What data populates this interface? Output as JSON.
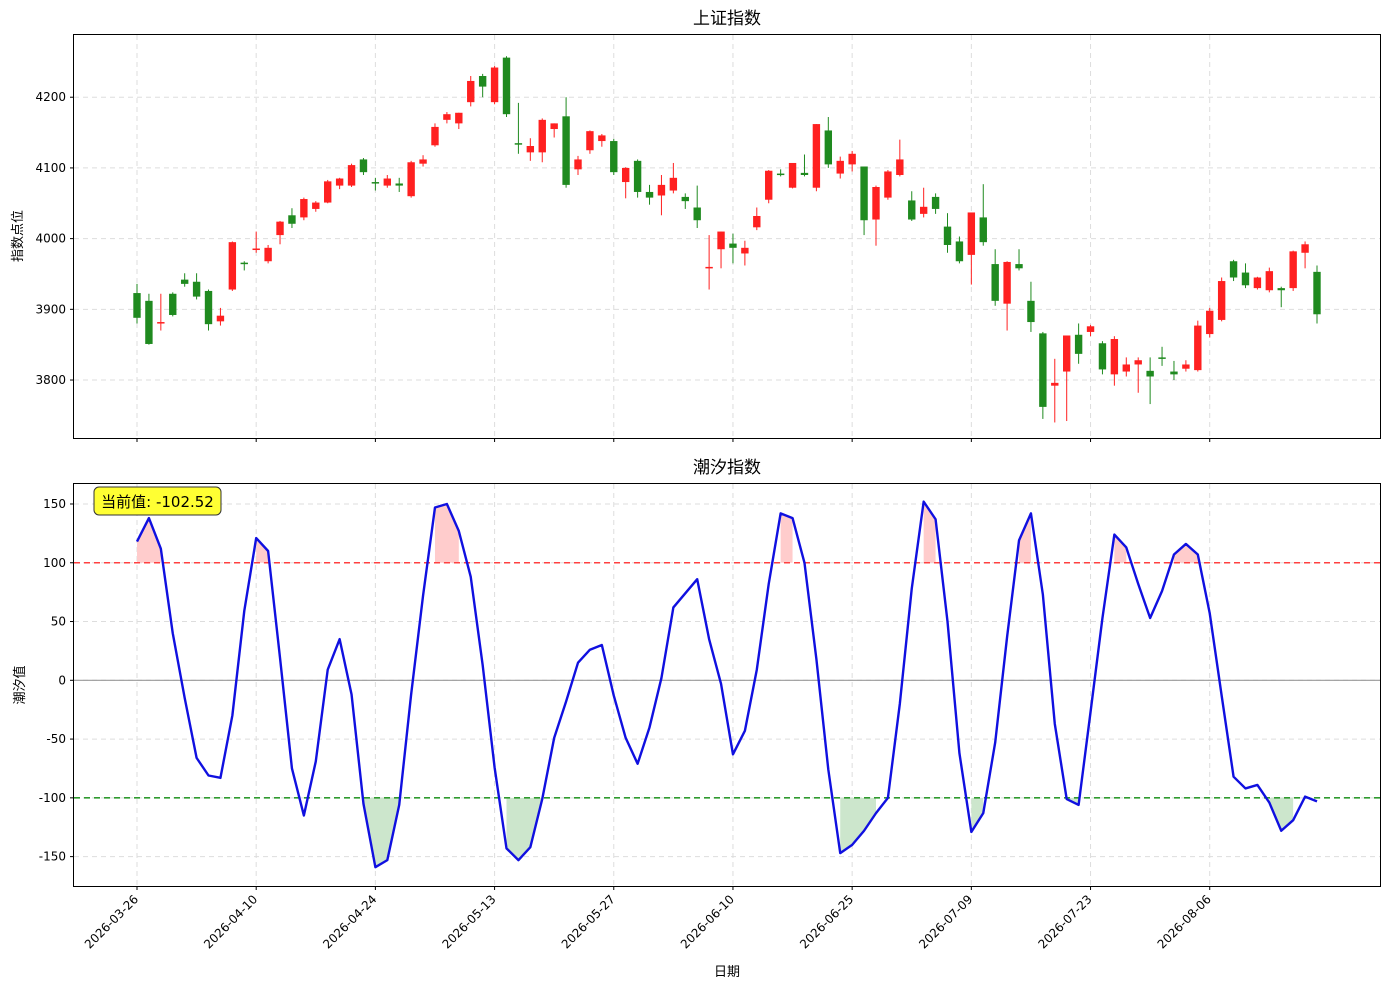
{
  "figure": {
    "xlabel": "日期",
    "x_ticks": [
      "2026-03-26",
      "2026-04-10",
      "2026-04-24",
      "2026-05-13",
      "2026-05-27",
      "2026-06-10",
      "2026-06-25",
      "2026-07-09",
      "2026-07-23",
      "2026-08-06"
    ]
  },
  "chart_data": [
    {
      "type": "candlestick",
      "title": "上证指数",
      "ylabel": "指数点位",
      "ylim": [
        3718,
        4288
      ],
      "y_ticks": [
        3800,
        3900,
        4000,
        4100,
        4200
      ],
      "grid": true,
      "colors": {
        "up": "#ff2020",
        "down": "#1f8a1f"
      },
      "x_tick_index": [
        0,
        10,
        20,
        30,
        40,
        50,
        60,
        70,
        80,
        90
      ],
      "ohlc": [
        [
          3923,
          3936,
          3888,
          3880
        ],
        [
          3912,
          3922,
          3851,
          3850
        ],
        [
          3882,
          3922,
          3882,
          3870
        ],
        [
          3922,
          3924,
          3892,
          3890
        ],
        [
          3942,
          3951,
          3936,
          3932
        ],
        [
          3939,
          3951,
          3918,
          3914
        ],
        [
          3926,
          3928,
          3879,
          3870
        ],
        [
          3883,
          3902,
          3891,
          3877
        ],
        [
          3928,
          3996,
          3995,
          3926
        ],
        [
          3966,
          3968,
          3965,
          3955
        ],
        [
          3985,
          4010,
          3986,
          3980
        ],
        [
          3968,
          3991,
          3987,
          3965
        ],
        [
          4005,
          4025,
          4024,
          3992
        ],
        [
          4033,
          4043,
          4021,
          4015
        ],
        [
          4030,
          4058,
          4056,
          4026
        ],
        [
          4042,
          4053,
          4051,
          4038
        ],
        [
          4051,
          4083,
          4081,
          4050
        ],
        [
          4075,
          4086,
          4085,
          4070
        ],
        [
          4075,
          4106,
          4104,
          4073
        ],
        [
          4112,
          4114,
          4094,
          4090
        ],
        [
          4080,
          4086,
          4078,
          4068
        ],
        [
          4075,
          4090,
          4085,
          4072
        ],
        [
          4078,
          4086,
          4075,
          4066
        ],
        [
          4060,
          4110,
          4108,
          4058
        ],
        [
          4106,
          4118,
          4112,
          4102
        ],
        [
          4132,
          4163,
          4158,
          4130
        ],
        [
          4168,
          4179,
          4176,
          4163
        ],
        [
          4163,
          4178,
          4178,
          4155
        ],
        [
          4193,
          4230,
          4223,
          4187
        ],
        [
          4230,
          4233,
          4215,
          4200
        ],
        [
          4193,
          4244,
          4242,
          4190
        ],
        [
          4256,
          4258,
          4176,
          4172
        ],
        [
          4135,
          4192,
          4134,
          4120
        ],
        [
          4122,
          4142,
          4131,
          4110
        ],
        [
          4122,
          4170,
          4168,
          4108
        ],
        [
          4155,
          4163,
          4163,
          4143
        ],
        [
          4173,
          4200,
          4076,
          4072
        ],
        [
          4098,
          4117,
          4112,
          4090
        ],
        [
          4125,
          4153,
          4152,
          4120
        ],
        [
          4138,
          4148,
          4146,
          4130
        ],
        [
          4138,
          4141,
          4094,
          4090
        ],
        [
          4080,
          4101,
          4100,
          4057
        ],
        [
          4110,
          4112,
          4066,
          4058
        ],
        [
          4066,
          4076,
          4058,
          4048
        ],
        [
          4061,
          4090,
          4076,
          4033
        ],
        [
          4068,
          4107,
          4086,
          4064
        ],
        [
          4059,
          4064,
          4053,
          4042
        ],
        [
          4044,
          4075,
          4026,
          4015
        ],
        [
          3958,
          4005,
          3960,
          3928
        ],
        [
          3985,
          4010,
          4010,
          3958
        ],
        [
          3993,
          4007,
          3987,
          3965
        ],
        [
          3979,
          3997,
          3987,
          3962
        ],
        [
          4016,
          4044,
          4032,
          4012
        ],
        [
          4055,
          4097,
          4096,
          4050
        ],
        [
          4092,
          4098,
          4091,
          4088
        ],
        [
          4072,
          4104,
          4107,
          4071
        ],
        [
          4093,
          4119,
          4090,
          4088
        ],
        [
          4072,
          4162,
          4162,
          4067
        ],
        [
          4153,
          4172,
          4105,
          4100
        ],
        [
          4092,
          4116,
          4110,
          4085
        ],
        [
          4105,
          4124,
          4120,
          4095
        ],
        [
          4102,
          4100,
          4026,
          4005
        ],
        [
          4027,
          4075,
          4073,
          3990
        ],
        [
          4058,
          4097,
          4095,
          4055
        ],
        [
          4090,
          4140,
          4112,
          4088
        ],
        [
          4054,
          4067,
          4027,
          4025
        ],
        [
          4035,
          4072,
          4045,
          4030
        ],
        [
          4059,
          4064,
          4042,
          4035
        ],
        [
          4017,
          4036,
          3991,
          3980
        ],
        [
          3996,
          4003,
          3968,
          3965
        ],
        [
          3977,
          4035,
          4037,
          3935
        ],
        [
          4030,
          4077,
          3995,
          3990
        ],
        [
          3964,
          3985,
          3912,
          3905
        ],
        [
          3908,
          3968,
          3967,
          3870
        ],
        [
          3964,
          3985,
          3958,
          3955
        ],
        [
          3912,
          3939,
          3882,
          3868
        ],
        [
          3866,
          3868,
          3762,
          3745
        ],
        [
          3792,
          3830,
          3796,
          3740
        ],
        [
          3812,
          3861,
          3863,
          3742
        ],
        [
          3864,
          3880,
          3837,
          3823
        ],
        [
          3868,
          3878,
          3876,
          3862
        ],
        [
          3852,
          3855,
          3815,
          3808
        ],
        [
          3808,
          3862,
          3858,
          3792
        ],
        [
          3812,
          3832,
          3822,
          3805
        ],
        [
          3822,
          3832,
          3828,
          3782
        ],
        [
          3813,
          3832,
          3805,
          3766
        ],
        [
          3832,
          3847,
          3831,
          3820
        ],
        [
          3812,
          3827,
          3808,
          3800
        ],
        [
          3816,
          3828,
          3822,
          3812
        ],
        [
          3814,
          3884,
          3877,
          3812
        ],
        [
          3865,
          3902,
          3898,
          3860
        ],
        [
          3885,
          3945,
          3940,
          3883
        ],
        [
          3968,
          3970,
          3945,
          3940
        ],
        [
          3952,
          3965,
          3934,
          3930
        ],
        [
          3930,
          3946,
          3945,
          3928
        ],
        [
          3927,
          3959,
          3954,
          3924
        ],
        [
          3930,
          3932,
          3927,
          3903
        ],
        [
          3930,
          3983,
          3982,
          3926
        ],
        [
          3980,
          3996,
          3992,
          3958
        ],
        [
          3953,
          3962,
          3893,
          3880
        ]
      ]
    },
    {
      "type": "line",
      "title": "潮汐指数",
      "ylabel": "潮汐值",
      "ylim": [
        -175,
        167
      ],
      "y_ticks": [
        -150,
        -100,
        -50,
        0,
        50,
        100,
        150
      ],
      "grid": true,
      "upper_threshold": 100,
      "lower_threshold": -100,
      "colors": {
        "line": "#1010e0",
        "upper": "#ff4040",
        "lower": "#2f9a2f",
        "upper_fill": "#ffcccc",
        "lower_fill": "#cce6cc",
        "zero": "#999999"
      },
      "annotation": "当前值: -102.52",
      "values": [
        118,
        138,
        112,
        40,
        -15,
        -66,
        -81,
        -83,
        -30,
        59,
        121,
        110,
        19,
        -75,
        -115,
        -69,
        9,
        35,
        -12,
        -105,
        -159,
        -153,
        -106,
        -12,
        72,
        147,
        150,
        127,
        88,
        13,
        -74,
        -143,
        -153,
        -142,
        -101,
        -49,
        -18,
        15,
        26,
        30,
        -13,
        -49,
        -71,
        -40,
        2,
        62,
        74,
        86,
        35,
        -3,
        -63,
        -43,
        9,
        82,
        142,
        138,
        100,
        18,
        -76,
        -147,
        -140,
        -128,
        -113,
        -100,
        -20,
        78,
        152,
        137,
        50,
        -62,
        -129,
        -113,
        -53,
        37,
        119,
        142,
        73,
        -37,
        -101,
        -106,
        -27,
        53,
        124,
        113,
        82,
        53,
        76,
        107,
        116,
        107,
        57,
        -13,
        -82,
        -92,
        -89,
        -104,
        -128,
        -119,
        -99,
        -103
      ]
    }
  ]
}
